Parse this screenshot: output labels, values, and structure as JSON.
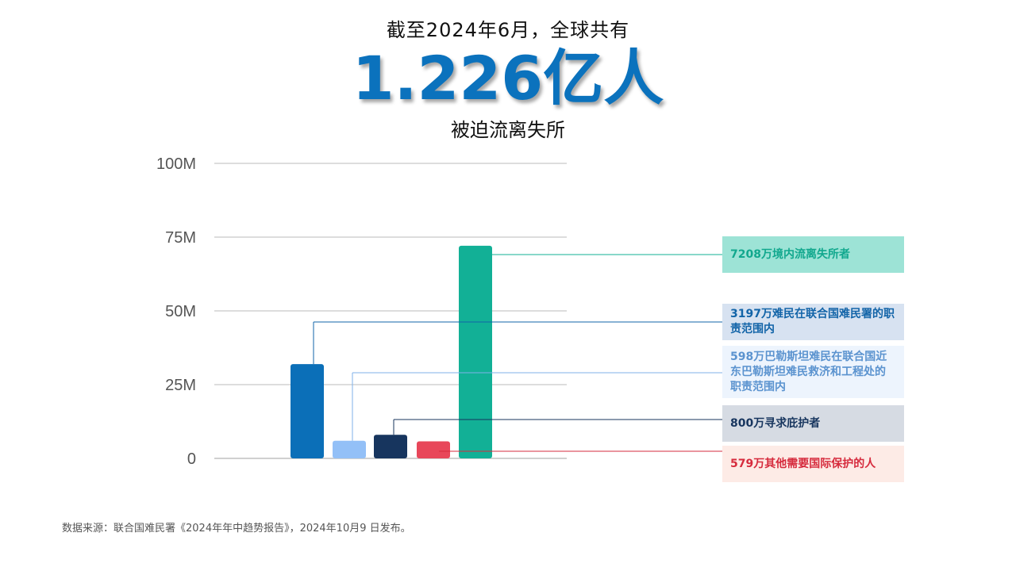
{
  "header": {
    "top_line": "截至2024年6月，全球共有",
    "big_number": "1.226亿人",
    "bottom_line": "被迫流离失所"
  },
  "chart_data": {
    "type": "bar",
    "ylim": [
      0,
      100
    ],
    "y_ticks": [
      "0",
      "25M",
      "50M",
      "75M",
      "100M"
    ],
    "grid": true,
    "bars": [
      {
        "key": "refugees_unhcr",
        "value": 31.97,
        "color": "#0b6fb8"
      },
      {
        "key": "palestine_unrwa",
        "value": 5.98,
        "color": "#93c0f7"
      },
      {
        "key": "asylum_seekers",
        "value": 8.0,
        "color": "#17355e"
      },
      {
        "key": "other_protection",
        "value": 5.79,
        "color": "#e8475a"
      },
      {
        "key": "idps",
        "value": 72.08,
        "color": "#12b096"
      }
    ],
    "labels": [
      {
        "key": "idps",
        "text": "7208万境内流离失所者",
        "text_color": "#12a88e",
        "bg": "#9de3d6"
      },
      {
        "key": "refugees_unhcr",
        "text": "3197万难民在联合国难民署的职责范围内",
        "text_color": "#1264a8",
        "bg": "#d7e2f1"
      },
      {
        "key": "palestine_unrwa",
        "text": "598万巴勒斯坦难民在联合国近东巴勒斯坦难民救济和工程处的职责范围内",
        "text_color": "#5b93cf",
        "bg": "#edf4fd"
      },
      {
        "key": "asylum_seekers",
        "text": "800万寻求庇护者",
        "text_color": "#17355e",
        "bg": "#d6dbe3"
      },
      {
        "key": "other_protection",
        "text": "579万其他需要国际保护的人",
        "text_color": "#d62b3d",
        "bg": "#fdebe6"
      }
    ]
  },
  "footer": {
    "source": "数据来源：联合国难民署《2024年年中趋势报告》，2024年10月9 日发布。"
  }
}
